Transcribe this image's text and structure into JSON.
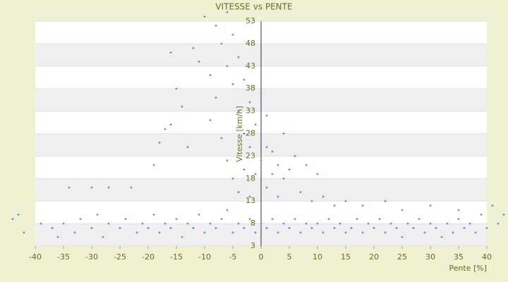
{
  "chart_data": {
    "type": "scatter",
    "title": "VITESSE vs PENTE",
    "x_label": "Pente [%]",
    "y_label": "Vitesse [km/h]",
    "color": "#2f7ec8",
    "xlim": [
      -40,
      40
    ],
    "xticks": [
      -40,
      -35,
      -30,
      -25,
      -20,
      -15,
      -10,
      -5,
      0,
      5,
      10,
      15,
      20,
      25,
      30,
      35,
      40
    ],
    "ylim": [
      3,
      53
    ],
    "yticks": [
      3,
      8,
      13,
      18,
      23,
      28,
      33,
      38,
      43,
      48,
      53
    ],
    "x": [
      -44,
      -43,
      -42,
      -39,
      -37,
      -36,
      -35,
      -33,
      -32,
      -30,
      -29,
      -28,
      -27,
      -25,
      -24,
      -22,
      -21,
      -20,
      -19,
      -18,
      -17,
      -16,
      -15,
      -14,
      -13,
      -12,
      -11,
      -10,
      -9,
      -8,
      -7,
      -6,
      -5,
      -4,
      -3,
      -2,
      -1,
      0,
      1,
      2,
      3,
      4,
      5,
      6,
      7,
      8,
      9,
      10,
      11,
      12,
      13,
      14,
      15,
      16,
      17,
      18,
      19,
      20,
      21,
      22,
      23,
      24,
      25,
      26,
      27,
      28,
      29,
      30,
      31,
      32,
      33,
      34,
      35,
      36,
      37,
      38,
      39,
      40,
      42,
      -34,
      -30,
      -27,
      -23,
      -19,
      -18,
      -17,
      -16,
      -16,
      -15,
      -14,
      -13,
      -12,
      -11,
      -10,
      -9,
      -9,
      -8,
      -8,
      -7,
      -7,
      -6,
      -6,
      -6,
      -5,
      -5,
      -5,
      -4,
      -4,
      -4,
      -3,
      -3,
      -3,
      -2,
      -2,
      -2,
      -1,
      -1,
      0,
      0,
      0,
      1,
      1,
      1,
      2,
      2,
      3,
      3,
      4,
      4,
      5,
      6,
      7,
      8,
      9,
      10,
      11,
      13,
      15,
      18,
      22,
      25,
      30,
      35,
      41,
      43
    ],
    "values": [
      9,
      10,
      6,
      8,
      7,
      5,
      8,
      6,
      9,
      7,
      10,
      5,
      8,
      7,
      9,
      6,
      8,
      7,
      10,
      6,
      8,
      7,
      9,
      5,
      8,
      7,
      10,
      6,
      8,
      7,
      9,
      11,
      6,
      8,
      7,
      9,
      6,
      8,
      7,
      9,
      6,
      8,
      7,
      9,
      6,
      8,
      7,
      8,
      6,
      9,
      7,
      8,
      6,
      7,
      9,
      6,
      8,
      7,
      9,
      6,
      8,
      7,
      5,
      8,
      7,
      9,
      6,
      8,
      7,
      5,
      8,
      6,
      9,
      7,
      8,
      6,
      10,
      7,
      8,
      16,
      16,
      16,
      16,
      21,
      26,
      29,
      30,
      46,
      38,
      34,
      25,
      47,
      44,
      54,
      41,
      31,
      52,
      36,
      48,
      27,
      55,
      43,
      22,
      50,
      39,
      18,
      45,
      33,
      15,
      40,
      28,
      20,
      35,
      25,
      14,
      30,
      19,
      37,
      27,
      22,
      32,
      25,
      16,
      24,
      19,
      21,
      14,
      18,
      28,
      20,
      23,
      15,
      21,
      13,
      19,
      14,
      12,
      13,
      12,
      13,
      11,
      12,
      11,
      12,
      10
    ],
    "grid": true
  }
}
